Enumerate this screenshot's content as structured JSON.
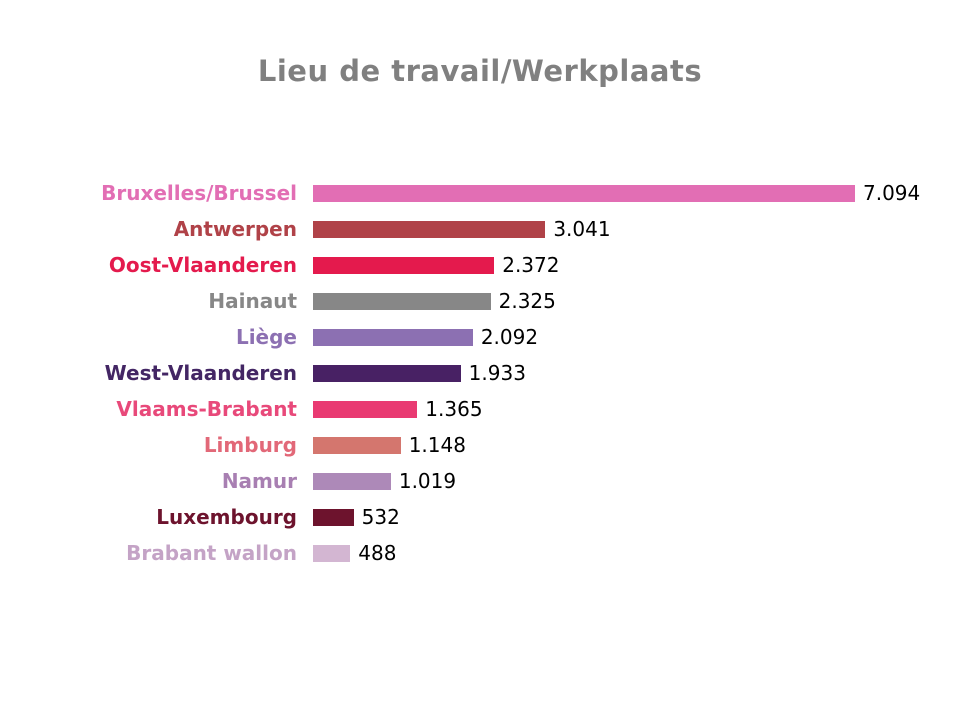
{
  "title": {
    "text": "Lieu de travail/Werkplaats",
    "color": "#808080"
  },
  "chart_data": {
    "type": "bar",
    "orientation": "horizontal",
    "title": "Lieu de travail/Werkplaats",
    "categories": [
      "Bruxelles/Brussel",
      "Antwerpen",
      "Oost-Vlaanderen",
      "Hainaut",
      "Liège",
      "West-Vlaanderen",
      "Vlaams-Brabant",
      "Limburg",
      "Namur",
      "Luxembourg",
      "Brabant wallon"
    ],
    "values": [
      7094,
      3041,
      2372,
      2325,
      2092,
      1933,
      1365,
      1148,
      1019,
      532,
      488
    ],
    "value_labels": [
      "7.094",
      "3.041",
      "2.372",
      "2.325",
      "2.092",
      "1.933",
      "1.365",
      "1.148",
      "1.019",
      "532",
      "488"
    ],
    "bar_colors": [
      "#e26eb4",
      "#b04248",
      "#e41a4d",
      "#878787",
      "#8c70b2",
      "#482164",
      "#e93a72",
      "#d4766e",
      "#ad89b8",
      "#6d132d",
      "#d3b6d2"
    ],
    "label_colors": [
      "#e26eb4",
      "#b04248",
      "#e41a4d",
      "#878787",
      "#8c70b2",
      "#432664",
      "#e8497a",
      "#e26878",
      "#a87fb2",
      "#6d132d",
      "#c4a3c6"
    ],
    "value_label_color": "#000000",
    "xlim": [
      0,
      7094
    ],
    "grid": false,
    "legend": false,
    "background": "#ffffff"
  }
}
